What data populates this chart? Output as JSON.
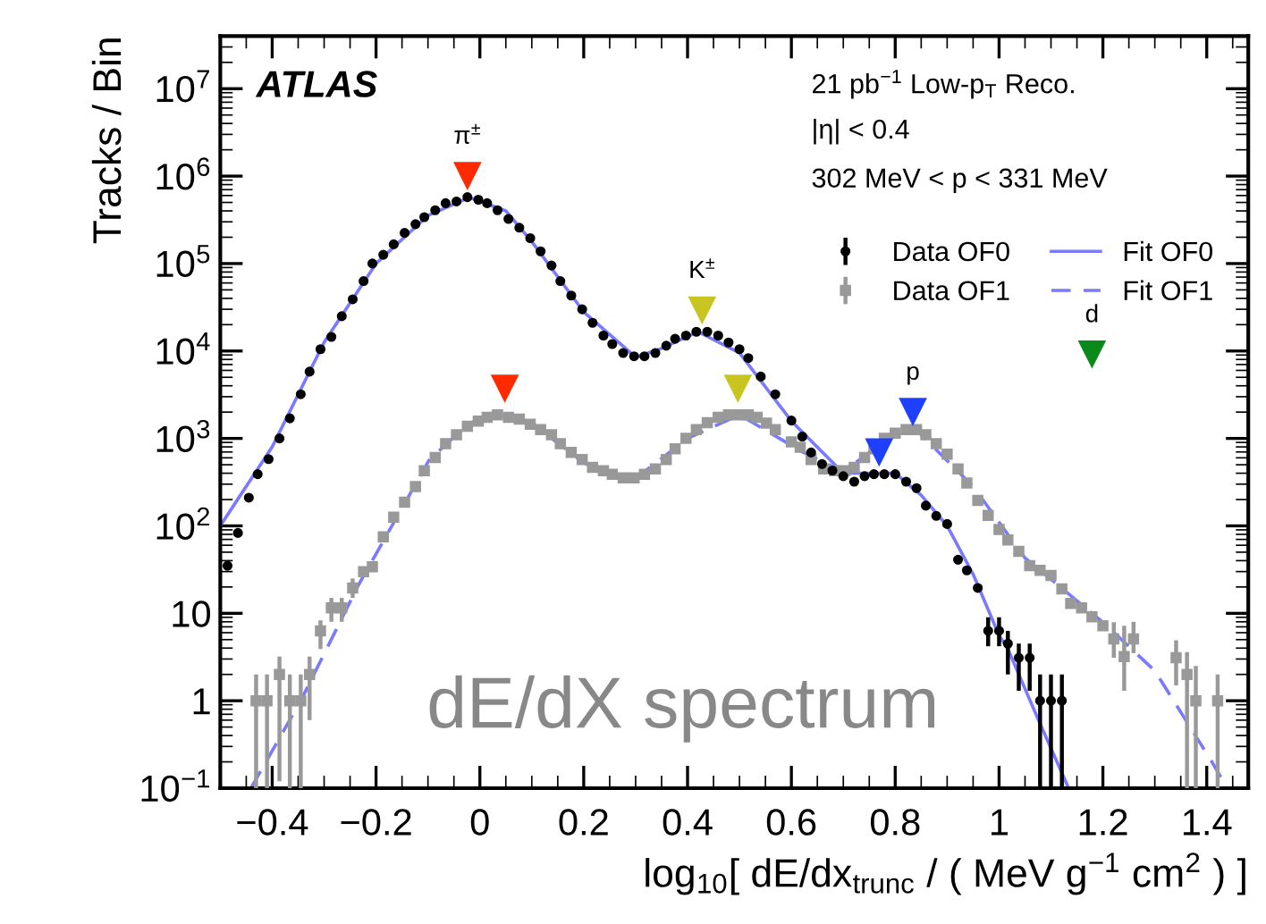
{
  "chart_data": {
    "type": "scatter",
    "xlabel": "log$_{10}$[ dE/dx$_{trunc}$ / ( MeV g$^{−1}$ cm$^{2}$ ) ]",
    "ylabel": "Tracks / Bin",
    "log": "y",
    "xlim": [
      -0.5,
      1.48
    ],
    "ylim": [
      0.1,
      40000000
    ],
    "xticks": [
      {
        "value": -0.4,
        "label": "−0.4"
      },
      {
        "value": -0.2,
        "label": "−0.2"
      },
      0,
      0.2,
      0.4,
      0.6,
      0.8,
      1,
      1.2,
      1.4
    ],
    "yticks": [
      {
        "value": 0.1,
        "label": "10$^{−1}$"
      },
      1,
      10,
      {
        "value": 100,
        "label": "10$^{2}$"
      },
      {
        "value": 1000,
        "label": "10$^{3}$"
      },
      {
        "value": 10000,
        "label": "10$^{4}$"
      },
      {
        "value": 100000,
        "label": "10$^{5}$"
      },
      {
        "value": 1000000,
        "label": "10$^{6}$"
      },
      {
        "value": 10000000,
        "label": "10$^{7}$"
      }
    ],
    "legend": "top right",
    "series": [
      {
        "name": "Data OF0",
        "type": "scatter",
        "marker": "circle",
        "color": "#000000",
        "x": [
          -0.486,
          -0.466,
          -0.445,
          -0.428,
          -0.407,
          -0.386,
          -0.366,
          -0.345,
          -0.328,
          -0.307,
          -0.286,
          -0.266,
          -0.245,
          -0.224,
          -0.207,
          -0.186,
          -0.166,
          -0.145,
          -0.124,
          -0.107,
          -0.086,
          -0.066,
          -0.045,
          -0.024,
          -0.003,
          0.014,
          0.034,
          0.055,
          0.076,
          0.097,
          0.117,
          0.138,
          0.155,
          0.176,
          0.197,
          0.217,
          0.238,
          0.255,
          0.276,
          0.297,
          0.317,
          0.338,
          0.359,
          0.376,
          0.397,
          0.417,
          0.438,
          0.459,
          0.479,
          0.5,
          0.517,
          0.541,
          0.569,
          0.6,
          0.621,
          0.638,
          0.659,
          0.679,
          0.7,
          0.721,
          0.741,
          0.759,
          0.779,
          0.8,
          0.821,
          0.841,
          0.859,
          0.879,
          0.9,
          0.921,
          0.938,
          0.959,
          0.979,
          1.0,
          1.017,
          1.038,
          1.059,
          1.079,
          1.1,
          1.121
        ],
        "values": [
          35,
          83,
          210,
          390,
          580,
          1000,
          1700,
          3200,
          5800,
          10500,
          14500,
          25000,
          39000,
          63000,
          100000,
          126000,
          166000,
          224000,
          282000,
          339000,
          407000,
          490000,
          513000,
          575000,
          537000,
          490000,
          407000,
          324000,
          257000,
          195000,
          138000,
          95000,
          63000,
          43000,
          30000,
          21000,
          15000,
          12000,
          9500,
          8700,
          8700,
          9500,
          11500,
          13800,
          15000,
          16600,
          16600,
          15000,
          12500,
          10500,
          8300,
          5100,
          3200,
          1600,
          1050,
          690,
          510,
          430,
          370,
          320,
          370,
          390,
          390,
          390,
          320,
          270,
          170,
          130,
          105,
          41,
          31,
          19.5,
          6.3,
          6.3,
          4.5,
          3.1,
          3.1,
          1,
          1,
          1
        ],
        "errors": [
          null,
          null,
          null,
          null,
          null,
          null,
          null,
          null,
          null,
          null,
          null,
          null,
          null,
          null,
          null,
          null,
          null,
          null,
          null,
          null,
          null,
          null,
          null,
          null,
          null,
          null,
          null,
          null,
          null,
          null,
          null,
          null,
          null,
          null,
          null,
          null,
          null,
          null,
          null,
          null,
          null,
          null,
          null,
          null,
          null,
          null,
          null,
          null,
          null,
          null,
          null,
          null,
          null,
          null,
          null,
          null,
          null,
          null,
          null,
          null,
          null,
          null,
          null,
          null,
          null,
          null,
          null,
          null,
          null,
          null,
          null,
          null,
          [
            4.2,
            9
          ],
          [
            4.2,
            9
          ],
          [
            2.0,
            6.3
          ],
          [
            1.3,
            4.5
          ],
          [
            1.3,
            4.5
          ],
          [
            0.1,
            2
          ],
          [
            0.1,
            2
          ],
          [
            0.1,
            2
          ]
        ]
      },
      {
        "name": "Data OF1",
        "type": "scatter",
        "marker": "square",
        "color": "#999999",
        "x": [
          -0.431,
          -0.41,
          -0.386,
          -0.366,
          -0.345,
          -0.328,
          -0.307,
          -0.286,
          -0.266,
          -0.245,
          -0.224,
          -0.207,
          -0.186,
          -0.166,
          -0.145,
          -0.124,
          -0.107,
          -0.086,
          -0.066,
          -0.045,
          -0.024,
          -0.003,
          0.014,
          0.034,
          0.055,
          0.076,
          0.097,
          0.117,
          0.138,
          0.155,
          0.176,
          0.197,
          0.217,
          0.238,
          0.255,
          0.276,
          0.297,
          0.317,
          0.338,
          0.359,
          0.376,
          0.397,
          0.417,
          0.438,
          0.459,
          0.479,
          0.5,
          0.517,
          0.534,
          0.552,
          0.569,
          0.6,
          0.617,
          0.638,
          0.662,
          0.683,
          0.703,
          0.721,
          0.741,
          0.759,
          0.779,
          0.8,
          0.821,
          0.841,
          0.859,
          0.879,
          0.9,
          0.921,
          0.938,
          0.959,
          0.979,
          1.0,
          1.017,
          1.038,
          1.059,
          1.079,
          1.1,
          1.121,
          1.138,
          1.159,
          1.179,
          1.2,
          1.221,
          1.241,
          1.259,
          1.341,
          1.362,
          1.379,
          1.421
        ],
        "values": [
          1,
          1,
          2,
          1,
          1,
          2,
          6.3,
          11.5,
          11.5,
          19.5,
          30,
          34,
          75,
          126,
          186,
          282,
          427,
          603,
          871,
          1100,
          1380,
          1580,
          1740,
          1860,
          1740,
          1660,
          1450,
          1260,
          1100,
          871,
          692,
          575,
          468,
          427,
          389,
          355,
          355,
          389,
          447,
          575,
          759,
          1000,
          1260,
          1510,
          1740,
          1860,
          1860,
          1860,
          1740,
          1500,
          1260,
          912,
          794,
          575,
          447,
          427,
          427,
          468,
          603,
          759,
          1000,
          1150,
          1260,
          1260,
          1100,
          871,
          661,
          447,
          309,
          195,
          132,
          91,
          69,
          51,
          35,
          31,
          27,
          19,
          13,
          11.5,
          9.1,
          7.2,
          5.1,
          3.2,
          5.1,
          3.1,
          2,
          1,
          1
        ],
        "errors": [
          [
            0.1,
            2
          ],
          [
            0.1,
            2
          ],
          [
            0.12,
            3.2
          ],
          [
            0.1,
            2
          ],
          [
            0.1,
            2
          ],
          [
            0.6,
            3.2
          ],
          [
            3.9,
            8.3
          ],
          [
            8,
            15
          ],
          [
            8,
            15
          ],
          [
            15,
            25
          ],
          null,
          null,
          null,
          null,
          null,
          null,
          null,
          null,
          null,
          null,
          null,
          null,
          null,
          null,
          null,
          null,
          null,
          null,
          null,
          null,
          null,
          null,
          null,
          null,
          null,
          null,
          null,
          null,
          null,
          null,
          null,
          null,
          null,
          null,
          null,
          null,
          null,
          null,
          null,
          null,
          null,
          null,
          null,
          null,
          null,
          null,
          null,
          null,
          null,
          null,
          null,
          null,
          null,
          null,
          null,
          null,
          null,
          null,
          null,
          null,
          null,
          null,
          null,
          null,
          null,
          null,
          null,
          null,
          null,
          null,
          null,
          null,
          [
            3.1,
            7.9
          ],
          [
            1.3,
            7.2
          ],
          [
            3.5,
            8
          ],
          [
            1.5,
            4.9
          ],
          [
            0.1,
            3.6
          ],
          [
            0.1,
            2.5
          ],
          [
            0.1,
            2
          ]
        ]
      },
      {
        "name": "Fit OF0",
        "type": "line",
        "line_style": "solid",
        "color": "#7a7aff",
        "x": [
          -0.5,
          -0.4,
          -0.3,
          -0.2,
          -0.1,
          -0.02,
          0.05,
          0.1,
          0.2,
          0.3,
          0.35,
          0.42,
          0.5,
          0.6,
          0.7,
          0.75,
          0.8,
          0.85,
          0.9,
          0.95,
          1.0,
          1.017,
          1.076,
          1.134
        ],
        "values": [
          100,
          800,
          12600,
          100000,
          355000,
          570000,
          400000,
          178000,
          28000,
          8500,
          10700,
          16600,
          9500,
          1580,
          400,
          400,
          400,
          224,
          100,
          28,
          5.6,
          3.9,
          0.6,
          0.1
        ]
      },
      {
        "name": "Fit OF1",
        "type": "line",
        "line_style": "dashed",
        "color": "#7a7aff",
        "x": [
          -0.441,
          -0.345,
          -0.234,
          -0.097,
          -0.02,
          0.03,
          0.1,
          0.2,
          0.293,
          0.4,
          0.5,
          0.62,
          0.7,
          0.8,
          0.84,
          0.95,
          1.05,
          1.2,
          1.3,
          1.41,
          1.43
        ],
        "values": [
          0.1,
          1,
          21,
          575,
          1500,
          1860,
          1500,
          525,
          324,
          1000,
          1860,
          708,
          417,
          1150,
          1260,
          282,
          43,
          7.9,
          2.2,
          0.2,
          0.125
        ]
      },
      {
        "marker": "triangle",
        "x": [
          -0.024,
          0.428,
          0.048,
          0.497,
          0.834,
          0.769,
          1.179
        ],
        "values": [
          1000000,
          29000,
          3700,
          3700,
          2000,
          690,
          9100
        ],
        "colors": [
          "#ff2a00",
          "#c8c420",
          "#ff2a00",
          "#c8c420",
          "#1f3fff",
          "#1f3fff",
          "#0a8a1a"
        ]
      }
    ],
    "annotations": [
      "ATLAS",
      "21 pb$^{−1}$ Low-p$_{T}$ Reco.",
      "|η| < 0.4",
      "302 MeV < p < 331 MeV",
      "dE/dX spectrum",
      {
        "text": "π$^{±}$",
        "x": -0.024,
        "y": 1000000
      },
      {
        "text": "K$^{±}$",
        "x": 0.428,
        "y": 29000
      },
      {
        "text": "p",
        "x": 0.834,
        "y": 2000
      },
      {
        "text": "d",
        "x": 1.179,
        "y": 9100
      }
    ]
  }
}
